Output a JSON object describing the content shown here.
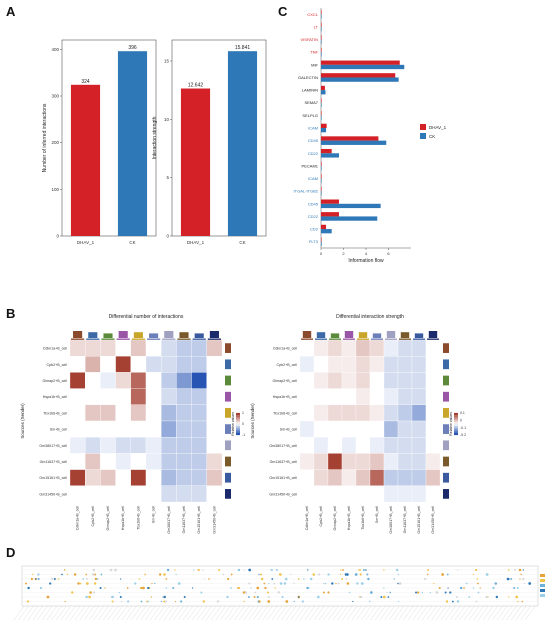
{
  "panels": {
    "a": "A",
    "b": "B",
    "c": "C",
    "d": "D"
  },
  "colors": {
    "dhav": "#d42127",
    "ck": "#2e78b7",
    "red_label": "#d42127",
    "blue_label": "#2e78b7",
    "black_label": "#222222"
  },
  "chart_data": [
    {
      "type": "bar",
      "categories": [
        "DHAV_1",
        "CK"
      ],
      "values": [
        324,
        396
      ],
      "value_labels": [
        "324",
        "396"
      ],
      "ylabel": "Number of inferred interactions",
      "ylim": [
        0,
        420
      ],
      "yticks": [
        0,
        100,
        200,
        300,
        400
      ],
      "grid": false
    },
    {
      "type": "bar",
      "categories": [
        "DHAV_1",
        "CK"
      ],
      "values": [
        12.642,
        15.841
      ],
      "value_labels": [
        "12.642",
        "15.841"
      ],
      "ylabel": "Interaction strength",
      "ylim": [
        0,
        16.8
      ],
      "yticks": [
        0,
        5,
        10,
        15
      ],
      "grid": false
    },
    {
      "type": "bar",
      "orientation": "horizontal",
      "categories": [
        "CXCL",
        "LT",
        "VISFATIN",
        "TNF",
        "MIF",
        "GALECTIN",
        "LAMININ",
        "SEMA7",
        "SELPLG",
        "ICAM",
        "CD45",
        "CD22",
        "PECAM1",
        "ICAM",
        "ITGAL-ITGB2",
        "CD45",
        "CD22",
        "CD2",
        "FLT3"
      ],
      "category_label_colors": [
        "red",
        "red",
        "red",
        "red",
        "black",
        "black",
        "black",
        "black",
        "black",
        "blue",
        "blue",
        "blue",
        "black",
        "blue",
        "blue",
        "blue",
        "blue",
        "blue",
        "blue"
      ],
      "series": [
        {
          "name": "DHAV_1",
          "values": [
            0.02,
            0.02,
            0.02,
            0.02,
            7.0,
            6.6,
            0.35,
            0.02,
            0.02,
            0.5,
            5.1,
            0.95,
            0.02,
            0.02,
            0.02,
            1.6,
            1.6,
            0.45,
            0.02
          ]
        },
        {
          "name": "CK",
          "values": [
            0.0,
            0.0,
            0.0,
            0.0,
            7.4,
            6.9,
            0.4,
            0.04,
            0.03,
            0.45,
            5.8,
            1.6,
            0.03,
            0.04,
            0.05,
            5.3,
            5.0,
            0.95,
            0.06
          ]
        }
      ],
      "xlabel": "Information flow",
      "xlim": [
        0,
        8
      ],
      "xticks": [
        0,
        2,
        4,
        6
      ],
      "legend": "right"
    },
    {
      "type": "heatmap",
      "title": "Differential number of interactions",
      "ylabel": "Sources (Sender)",
      "rows": [
        "Cdkn1a+B_cell",
        "Cpb2+B_cell",
        "Gimap2+B_cell",
        "Hspa1b+B_cell",
        "Tbx1b6+B_cell",
        "Sm+B_cell",
        "Gm38017+B_cell",
        "Gm11637+B_cell",
        "Gm15161+B_cell",
        "Gm31450+B_cell"
      ],
      "cols": [
        "Cdkn1a+B_cell",
        "Cpb2+B_cell",
        "Gimap2+B_cell",
        "Hspa1b+B_cell",
        "Tbx1b6+B_cell",
        "Sm+B_cell",
        "Gm38017+B_cell",
        "Gm11637+B_cell",
        "Gm15161+B_cell",
        "Gm31450+B_cell"
      ],
      "values": [
        [
          0.2,
          0.2,
          0.2,
          0,
          0.3,
          0,
          -0.2,
          -0.3,
          -0.3,
          0.3
        ],
        [
          0,
          0.4,
          0,
          1,
          0,
          -0.2,
          -0.2,
          -0.3,
          -0.3,
          0
        ],
        [
          1,
          0,
          -0.1,
          0.2,
          0.8,
          0,
          -0.3,
          -0.6,
          -1,
          0
        ],
        [
          0,
          0,
          0,
          0,
          0.8,
          0,
          -0.2,
          -0.3,
          -0.3,
          0
        ],
        [
          0,
          0.3,
          0.3,
          0,
          0.3,
          0,
          -0.4,
          -0.3,
          -0.3,
          0
        ],
        [
          0,
          0,
          0,
          0,
          0,
          0,
          -0.5,
          -0.3,
          -0.3,
          0
        ],
        [
          -0.1,
          -0.2,
          -0.1,
          -0.2,
          -0.2,
          -0.1,
          -0.3,
          -0.3,
          -0.3,
          0
        ],
        [
          0,
          0.3,
          0,
          -0.1,
          0,
          -0.1,
          -0.3,
          -0.3,
          -0.3,
          0.2
        ],
        [
          1,
          0.2,
          0.3,
          0,
          1,
          0,
          -0.4,
          -0.3,
          -0.3,
          0.3
        ],
        [
          0,
          0,
          0,
          0,
          0,
          0,
          -0.2,
          -0.2,
          -0.2,
          0
        ]
      ],
      "legend_title": "Relative values",
      "colorbar_ticks": [
        "1",
        "0",
        "-1"
      ]
    },
    {
      "type": "heatmap",
      "title": "Differential interaction strength",
      "ylabel": "Sources (Sender)",
      "rows": [
        "Cdkn1a+B_cell",
        "Cpb2+B_cell",
        "Gimap2+B_cell",
        "Hspa1b+B_cell",
        "Tbx1b6+B_cell",
        "Sm+B_cell",
        "Gm38017+B_cell",
        "Gm11637+B_cell",
        "Gm15161+B_cell",
        "Gm31450+B_cell"
      ],
      "cols": [
        "Cdkn1a+B_cell",
        "Cpb2+B_cell",
        "Gimap2+B_cell",
        "Hspa1b+B_cell",
        "Tbx1b6+B_cell",
        "Sm+B_cell",
        "Gm38017+B_cell",
        "Gm11637+B_cell",
        "Gm15161+B_cell",
        "Gm31450+B_cell"
      ],
      "values": [
        [
          0,
          0.1,
          0.2,
          0.1,
          0.3,
          0.2,
          -0.1,
          -0.2,
          -0.2,
          0
        ],
        [
          -0.1,
          0,
          0.1,
          0.1,
          0.2,
          0.1,
          -0.2,
          -0.2,
          -0.2,
          0
        ],
        [
          0,
          0.1,
          0.2,
          0.1,
          0.2,
          0,
          -0.2,
          -0.2,
          -0.2,
          0
        ],
        [
          0,
          0,
          0,
          0,
          0.1,
          0,
          -0.1,
          -0.2,
          -0.2,
          0
        ],
        [
          0,
          0.1,
          0.2,
          0.2,
          0.2,
          0.1,
          -0.2,
          -0.3,
          -0.5,
          0
        ],
        [
          -0.1,
          0,
          0,
          0,
          0,
          0,
          -0.4,
          -0.2,
          -0.2,
          0
        ],
        [
          0,
          -0.1,
          0,
          -0.1,
          0,
          -0.1,
          -0.2,
          -0.2,
          -0.2,
          0
        ],
        [
          0.1,
          0.2,
          1,
          0.2,
          0.2,
          0.3,
          -0.1,
          -0.2,
          -0.2,
          0.1
        ],
        [
          0,
          0.2,
          0.3,
          0.1,
          0.3,
          0.8,
          -0.3,
          -0.3,
          -0.3,
          0.3
        ],
        [
          0,
          0,
          0,
          0,
          0,
          0,
          -0.1,
          -0.1,
          -0.1,
          0
        ]
      ],
      "legend_title": "Relative values",
      "colorbar_ticks": [
        "0.1",
        "0",
        "-0.1",
        "-0.2"
      ]
    }
  ]
}
